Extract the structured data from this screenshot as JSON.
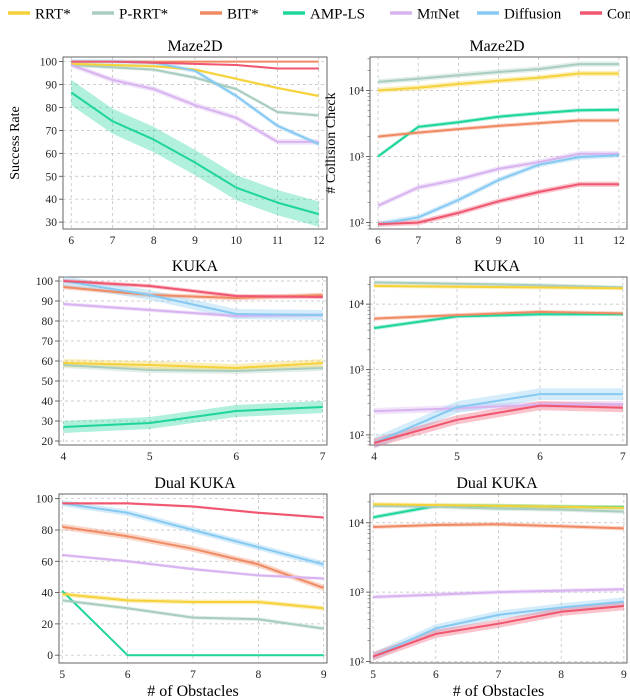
{
  "legend": [
    {
      "name": "RRT*",
      "color": "#f5d23a"
    },
    {
      "name": "P-RRT*",
      "color": "#a9cdbf"
    },
    {
      "name": "BIT*",
      "color": "#f08a63"
    },
    {
      "name": "AMP-LS",
      "color": "#1ed59b"
    },
    {
      "name": "MπNet",
      "color": "#d8b3f0"
    },
    {
      "name": "Diffusion",
      "color": "#86c9f2"
    },
    {
      "name": "Composed",
      "color": "#f0566f"
    }
  ],
  "xlabel": "# of Obstacles",
  "chart_data": [
    {
      "type": "line",
      "title": "Maze2D",
      "ylabel": "Success Rate",
      "xlabel": "",
      "yscale": "linear",
      "x": [
        6,
        7,
        8,
        9,
        10,
        11,
        12
      ],
      "xlim": [
        5.8,
        12.2
      ],
      "ylim": [
        27,
        102
      ],
      "yticks": [
        30,
        40,
        50,
        60,
        70,
        80,
        90,
        100
      ],
      "series": [
        {
          "name": "RRT*",
          "values": [
            99,
            98.5,
            98,
            96.5,
            92.5,
            88.5,
            85
          ],
          "band": 0.6
        },
        {
          "name": "P-RRT*",
          "values": [
            98.5,
            97.5,
            96.5,
            93,
            88,
            78,
            76.5
          ],
          "band": 0.8
        },
        {
          "name": "BIT*",
          "values": [
            100,
            100,
            100,
            100,
            100,
            100,
            100
          ],
          "band": 0.2
        },
        {
          "name": "AMP-LS",
          "values": [
            86.5,
            74,
            66,
            56,
            45,
            38.5,
            33.5
          ],
          "band": 5.5
        },
        {
          "name": "MπNet",
          "values": [
            98.5,
            92,
            88,
            81,
            75.5,
            65,
            65
          ],
          "band": 1.2
        },
        {
          "name": "Diffusion",
          "values": [
            100,
            100,
            99.5,
            96,
            85,
            72,
            64
          ],
          "band": 1.0
        },
        {
          "name": "Composed",
          "values": [
            100,
            100,
            99.5,
            99,
            98.5,
            97,
            97
          ],
          "band": 0.4
        }
      ]
    },
    {
      "type": "line",
      "title": "Maze2D",
      "ylabel": "# Collision Check",
      "xlabel": "",
      "yscale": "log",
      "x": [
        6,
        7,
        8,
        9,
        10,
        11,
        12
      ],
      "xlim": [
        5.8,
        12.2
      ],
      "ylim": [
        80,
        32000
      ],
      "yticks": [
        100,
        1000,
        10000
      ],
      "ytick_labels": [
        "10²",
        "10³",
        "10⁴"
      ],
      "series": [
        {
          "name": "RRT*",
          "values": [
            10000,
            11000,
            12500,
            14000,
            15500,
            18000,
            18000
          ],
          "band": 0.04
        },
        {
          "name": "P-RRT*",
          "values": [
            13500,
            15000,
            17000,
            19000,
            21000,
            25000,
            25000
          ],
          "band": 0.04
        },
        {
          "name": "BIT*",
          "values": [
            2000,
            2300,
            2600,
            2900,
            3200,
            3500,
            3500
          ],
          "band": 0.03
        },
        {
          "name": "AMP-LS",
          "values": [
            1000,
            2800,
            3300,
            4000,
            4500,
            5000,
            5100
          ],
          "band": 0.03
        },
        {
          "name": "MπNet",
          "values": [
            180,
            340,
            450,
            650,
            820,
            1100,
            1100
          ],
          "band": 0.04
        },
        {
          "name": "Diffusion",
          "values": [
            95,
            120,
            220,
            440,
            750,
            980,
            1050
          ],
          "band": 0.04
        },
        {
          "name": "Composed",
          "values": [
            95,
            100,
            140,
            210,
            290,
            380,
            380
          ],
          "band": 0.04
        }
      ]
    },
    {
      "type": "line",
      "title": "KUKA",
      "ylabel": "",
      "xlabel": "",
      "yscale": "linear",
      "x": [
        4,
        5,
        6,
        7
      ],
      "xlim": [
        3.95,
        7.05
      ],
      "ylim": [
        18,
        102
      ],
      "yticks": [
        20,
        30,
        40,
        50,
        60,
        70,
        80,
        90,
        100
      ],
      "series": [
        {
          "name": "RRT*",
          "values": [
            59,
            58,
            56.5,
            59
          ],
          "band": 2.0
        },
        {
          "name": "P-RRT*",
          "values": [
            58,
            55.5,
            55,
            56.5
          ],
          "band": 1.5
        },
        {
          "name": "BIT*",
          "values": [
            97,
            93,
            91.5,
            93
          ],
          "band": 1.2
        },
        {
          "name": "AMP-LS",
          "values": [
            27,
            29,
            35,
            37
          ],
          "band": 3.0
        },
        {
          "name": "MπNet",
          "values": [
            88.5,
            85.5,
            82.5,
            83
          ],
          "band": 1.0
        },
        {
          "name": "Diffusion",
          "values": [
            100,
            93,
            83.5,
            83
          ],
          "band": 2.5
        },
        {
          "name": "Composed",
          "values": [
            100,
            97.5,
            92.5,
            92
          ],
          "band": 1.0
        }
      ]
    },
    {
      "type": "line",
      "title": "KUKA",
      "ylabel": "",
      "xlabel": "",
      "yscale": "log",
      "x": [
        4,
        5,
        6,
        7
      ],
      "xlim": [
        3.95,
        7.05
      ],
      "ylim": [
        70,
        26000
      ],
      "yticks": [
        100,
        1000,
        10000
      ],
      "ytick_labels": [
        "10²",
        "10³",
        "10⁴"
      ],
      "series": [
        {
          "name": "RRT*",
          "values": [
            19000,
            18500,
            18000,
            17500
          ],
          "band": 0.03
        },
        {
          "name": "P-RRT*",
          "values": [
            21500,
            20500,
            19500,
            18000
          ],
          "band": 0.03
        },
        {
          "name": "BIT*",
          "values": [
            6000,
            6800,
            7600,
            7200
          ],
          "band": 0.03
        },
        {
          "name": "AMP-LS",
          "values": [
            4300,
            6500,
            7000,
            7000
          ],
          "band": 0.03
        },
        {
          "name": "MπNet",
          "values": [
            230,
            255,
            290,
            295
          ],
          "band": 0.05
        },
        {
          "name": "Diffusion",
          "values": [
            75,
            265,
            420,
            420
          ],
          "band": 0.09
        },
        {
          "name": "Composed",
          "values": [
            75,
            170,
            280,
            260
          ],
          "band": 0.07
        }
      ]
    },
    {
      "type": "line",
      "title": "Dual KUKA",
      "ylabel": "",
      "xlabel": "# of Obstacles",
      "yscale": "linear",
      "x": [
        5,
        6,
        7,
        8,
        9
      ],
      "xlim": [
        4.95,
        9.05
      ],
      "ylim": [
        -5,
        103
      ],
      "yticks": [
        0,
        20,
        40,
        60,
        80,
        100
      ],
      "series": [
        {
          "name": "RRT*",
          "values": [
            39,
            35,
            34,
            34,
            30
          ],
          "band": 1.5
        },
        {
          "name": "P-RRT*",
          "values": [
            35,
            30,
            24,
            23,
            17
          ],
          "band": 1.2
        },
        {
          "name": "BIT*",
          "values": [
            82,
            76,
            68,
            58,
            43
          ],
          "band": 2.0
        },
        {
          "name": "AMP-LS",
          "values": [
            41,
            0,
            0,
            0,
            0
          ],
          "band": 0.5
        },
        {
          "name": "MπNet",
          "values": [
            64,
            60,
            55,
            51,
            49
          ],
          "band": 1.0
        },
        {
          "name": "Diffusion",
          "values": [
            97,
            91,
            80,
            69,
            58
          ],
          "band": 2.0
        },
        {
          "name": "Composed",
          "values": [
            97,
            97,
            95,
            91,
            88
          ],
          "band": 0.8
        }
      ]
    },
    {
      "type": "line",
      "title": "Dual KUKA",
      "ylabel": "",
      "xlabel": "# of Obstacles",
      "yscale": "log",
      "x": [
        5,
        6,
        7,
        8,
        9
      ],
      "xlim": [
        4.95,
        9.05
      ],
      "ylim": [
        95,
        26000
      ],
      "yticks": [
        100,
        1000,
        10000
      ],
      "ytick_labels": [
        "10²",
        "10³",
        "10⁴"
      ],
      "series": [
        {
          "name": "RRT*",
          "values": [
            18500,
            18000,
            17500,
            17000,
            16500
          ],
          "band": 0.03
        },
        {
          "name": "P-RRT*",
          "values": [
            17500,
            17000,
            16000,
            15500,
            14500
          ],
          "band": 0.03
        },
        {
          "name": "BIT*",
          "values": [
            8700,
            9300,
            9500,
            8900,
            8300
          ],
          "band": 0.03
        },
        {
          "name": "AMP-LS",
          "values": [
            12000,
            17500,
            17500,
            17000,
            16800
          ],
          "band": 0.03
        },
        {
          "name": "MπNet",
          "values": [
            850,
            920,
            1000,
            1050,
            1100
          ],
          "band": 0.03
        },
        {
          "name": "Diffusion",
          "values": [
            118,
            300,
            470,
            600,
            730
          ],
          "band": 0.06
        },
        {
          "name": "Composed",
          "values": [
            118,
            250,
            350,
            520,
            630
          ],
          "band": 0.06
        }
      ]
    }
  ]
}
